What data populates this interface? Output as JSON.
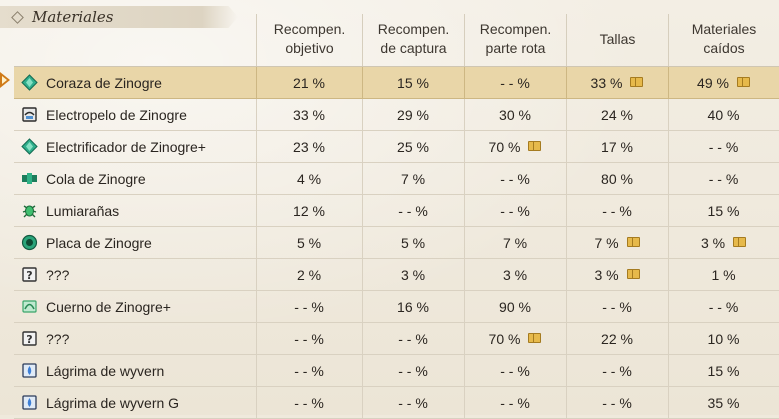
{
  "section": {
    "title": "Materiales"
  },
  "columns": [
    "Recompen.\nobjetivo",
    "Recompen.\nde captura",
    "Recompen.\nparte rota",
    "Tallas",
    "Materiales\ncaídos"
  ],
  "colors": {
    "selected_row": "#e9d6a8",
    "cursor": "#d07a18",
    "book_badge": "#e6b94b"
  },
  "rows": [
    {
      "name": "Coraza de Zinogre",
      "icon": "gem-icon",
      "values": [
        "21 %",
        "15 %",
        "- - %",
        "33 %",
        "49 %"
      ],
      "books": [
        false,
        false,
        false,
        true,
        true
      ],
      "selected": true
    },
    {
      "name": "Electropelo de Zinogre",
      "icon": "hide-icon",
      "values": [
        "33 %",
        "29 %",
        "30 %",
        "24 %",
        "40 %"
      ],
      "books": [
        false,
        false,
        false,
        false,
        false
      ]
    },
    {
      "name": "Electrificador de Zinogre+",
      "icon": "gem-icon",
      "values": [
        "23 %",
        "25 %",
        "70 %",
        "17 %",
        "- - %"
      ],
      "books": [
        false,
        false,
        true,
        false,
        false
      ]
    },
    {
      "name": "Cola de Zinogre",
      "icon": "tail-icon",
      "values": [
        "4 %",
        "7 %",
        "- - %",
        "80 %",
        "- - %"
      ],
      "books": [
        false,
        false,
        false,
        false,
        false
      ]
    },
    {
      "name": "Lumiarañas",
      "icon": "bug-icon",
      "values": [
        "12 %",
        "- - %",
        "- - %",
        "- - %",
        "15 %"
      ],
      "books": [
        false,
        false,
        false,
        false,
        false
      ]
    },
    {
      "name": "Placa de Zinogre",
      "icon": "plate-icon",
      "values": [
        "5 %",
        "5 %",
        "7 %",
        "7 %",
        "3 %"
      ],
      "books": [
        false,
        false,
        false,
        true,
        true
      ]
    },
    {
      "name": "???",
      "icon": "unknown-icon",
      "values": [
        "2 %",
        "3 %",
        "3 %",
        "3 %",
        "1 %"
      ],
      "books": [
        false,
        false,
        false,
        true,
        false
      ]
    },
    {
      "name": "Cuerno de Zinogre+",
      "icon": "horn-icon",
      "values": [
        "- - %",
        "16 %",
        "90 %",
        "- - %",
        "- - %"
      ],
      "books": [
        false,
        false,
        false,
        false,
        false
      ]
    },
    {
      "name": "???",
      "icon": "unknown-icon",
      "values": [
        "- - %",
        "- - %",
        "70 %",
        "22 %",
        "10 %"
      ],
      "books": [
        false,
        false,
        true,
        false,
        false
      ]
    },
    {
      "name": "Lágrima de wyvern",
      "icon": "tear-icon",
      "values": [
        "- - %",
        "- - %",
        "- - %",
        "- - %",
        "15 %"
      ],
      "books": [
        false,
        false,
        false,
        false,
        false
      ]
    },
    {
      "name": "Lágrima de wyvern G",
      "icon": "tear-icon",
      "values": [
        "- - %",
        "- - %",
        "- - %",
        "- - %",
        "35 %"
      ],
      "books": [
        false,
        false,
        false,
        false,
        false
      ]
    }
  ]
}
